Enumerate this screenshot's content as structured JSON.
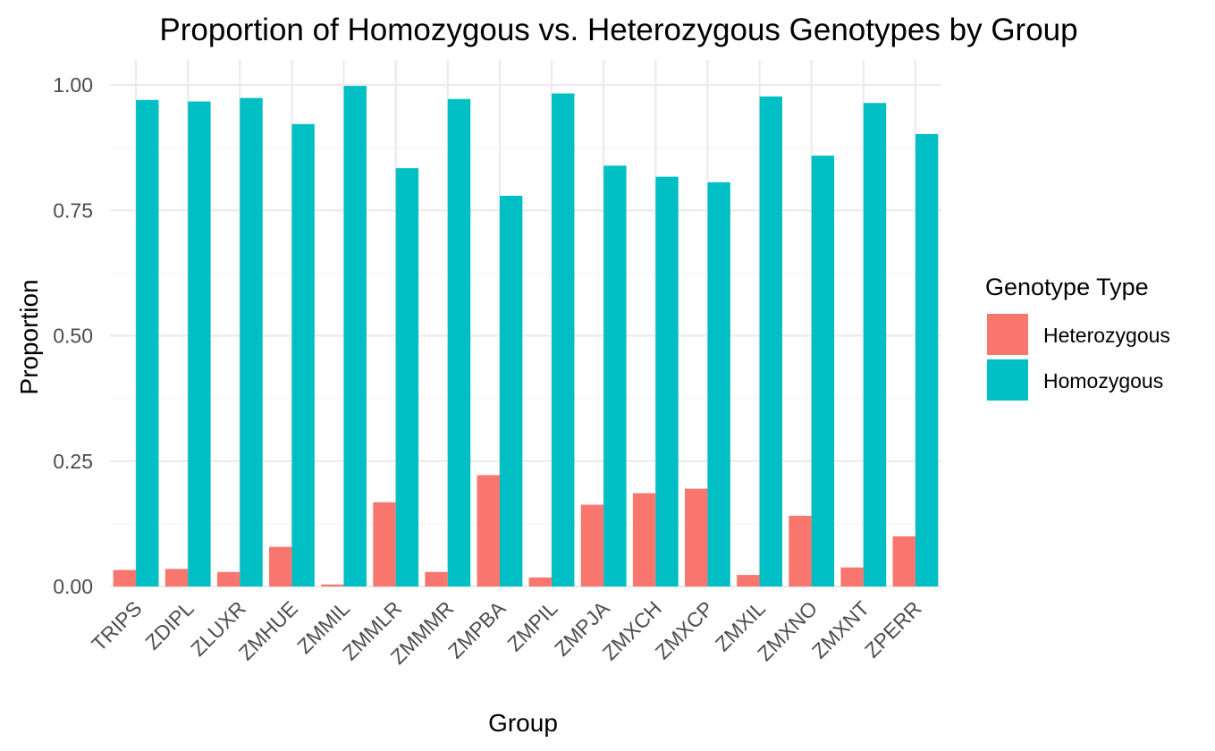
{
  "chart_data": {
    "type": "bar",
    "title": "Proportion of Homozygous vs. Heterozygous Genotypes by Group",
    "xlabel": "Group",
    "ylabel": "Proportion",
    "ylim": [
      0,
      1.05
    ],
    "yticks": [
      0.0,
      0.25,
      0.5,
      0.75,
      1.0
    ],
    "ytick_labels": [
      "0.00",
      "0.25",
      "0.50",
      "0.75",
      "1.00"
    ],
    "grid": true,
    "legend": {
      "title": "Genotype Type",
      "position": "right"
    },
    "categories": [
      "TRIPS",
      "ZDIPL",
      "ZLUXR",
      "ZMHUE",
      "ZMMIL",
      "ZMMLR",
      "ZMMMR",
      "ZMPBA",
      "ZMPIL",
      "ZMPJA",
      "ZMXCH",
      "ZMXCP",
      "ZMXIL",
      "ZMXNO",
      "ZMXNT",
      "ZPERR"
    ],
    "series": [
      {
        "name": "Heterozygous",
        "color": "#F8766D",
        "values": [
          0.033,
          0.035,
          0.029,
          0.079,
          0.004,
          0.168,
          0.029,
          0.222,
          0.018,
          0.163,
          0.186,
          0.195,
          0.023,
          0.141,
          0.038,
          0.1
        ]
      },
      {
        "name": "Homozygous",
        "color": "#00BFC4",
        "values": [
          0.97,
          0.967,
          0.974,
          0.922,
          0.998,
          0.834,
          0.972,
          0.779,
          0.983,
          0.839,
          0.817,
          0.806,
          0.977,
          0.859,
          0.964,
          0.902
        ]
      }
    ]
  }
}
